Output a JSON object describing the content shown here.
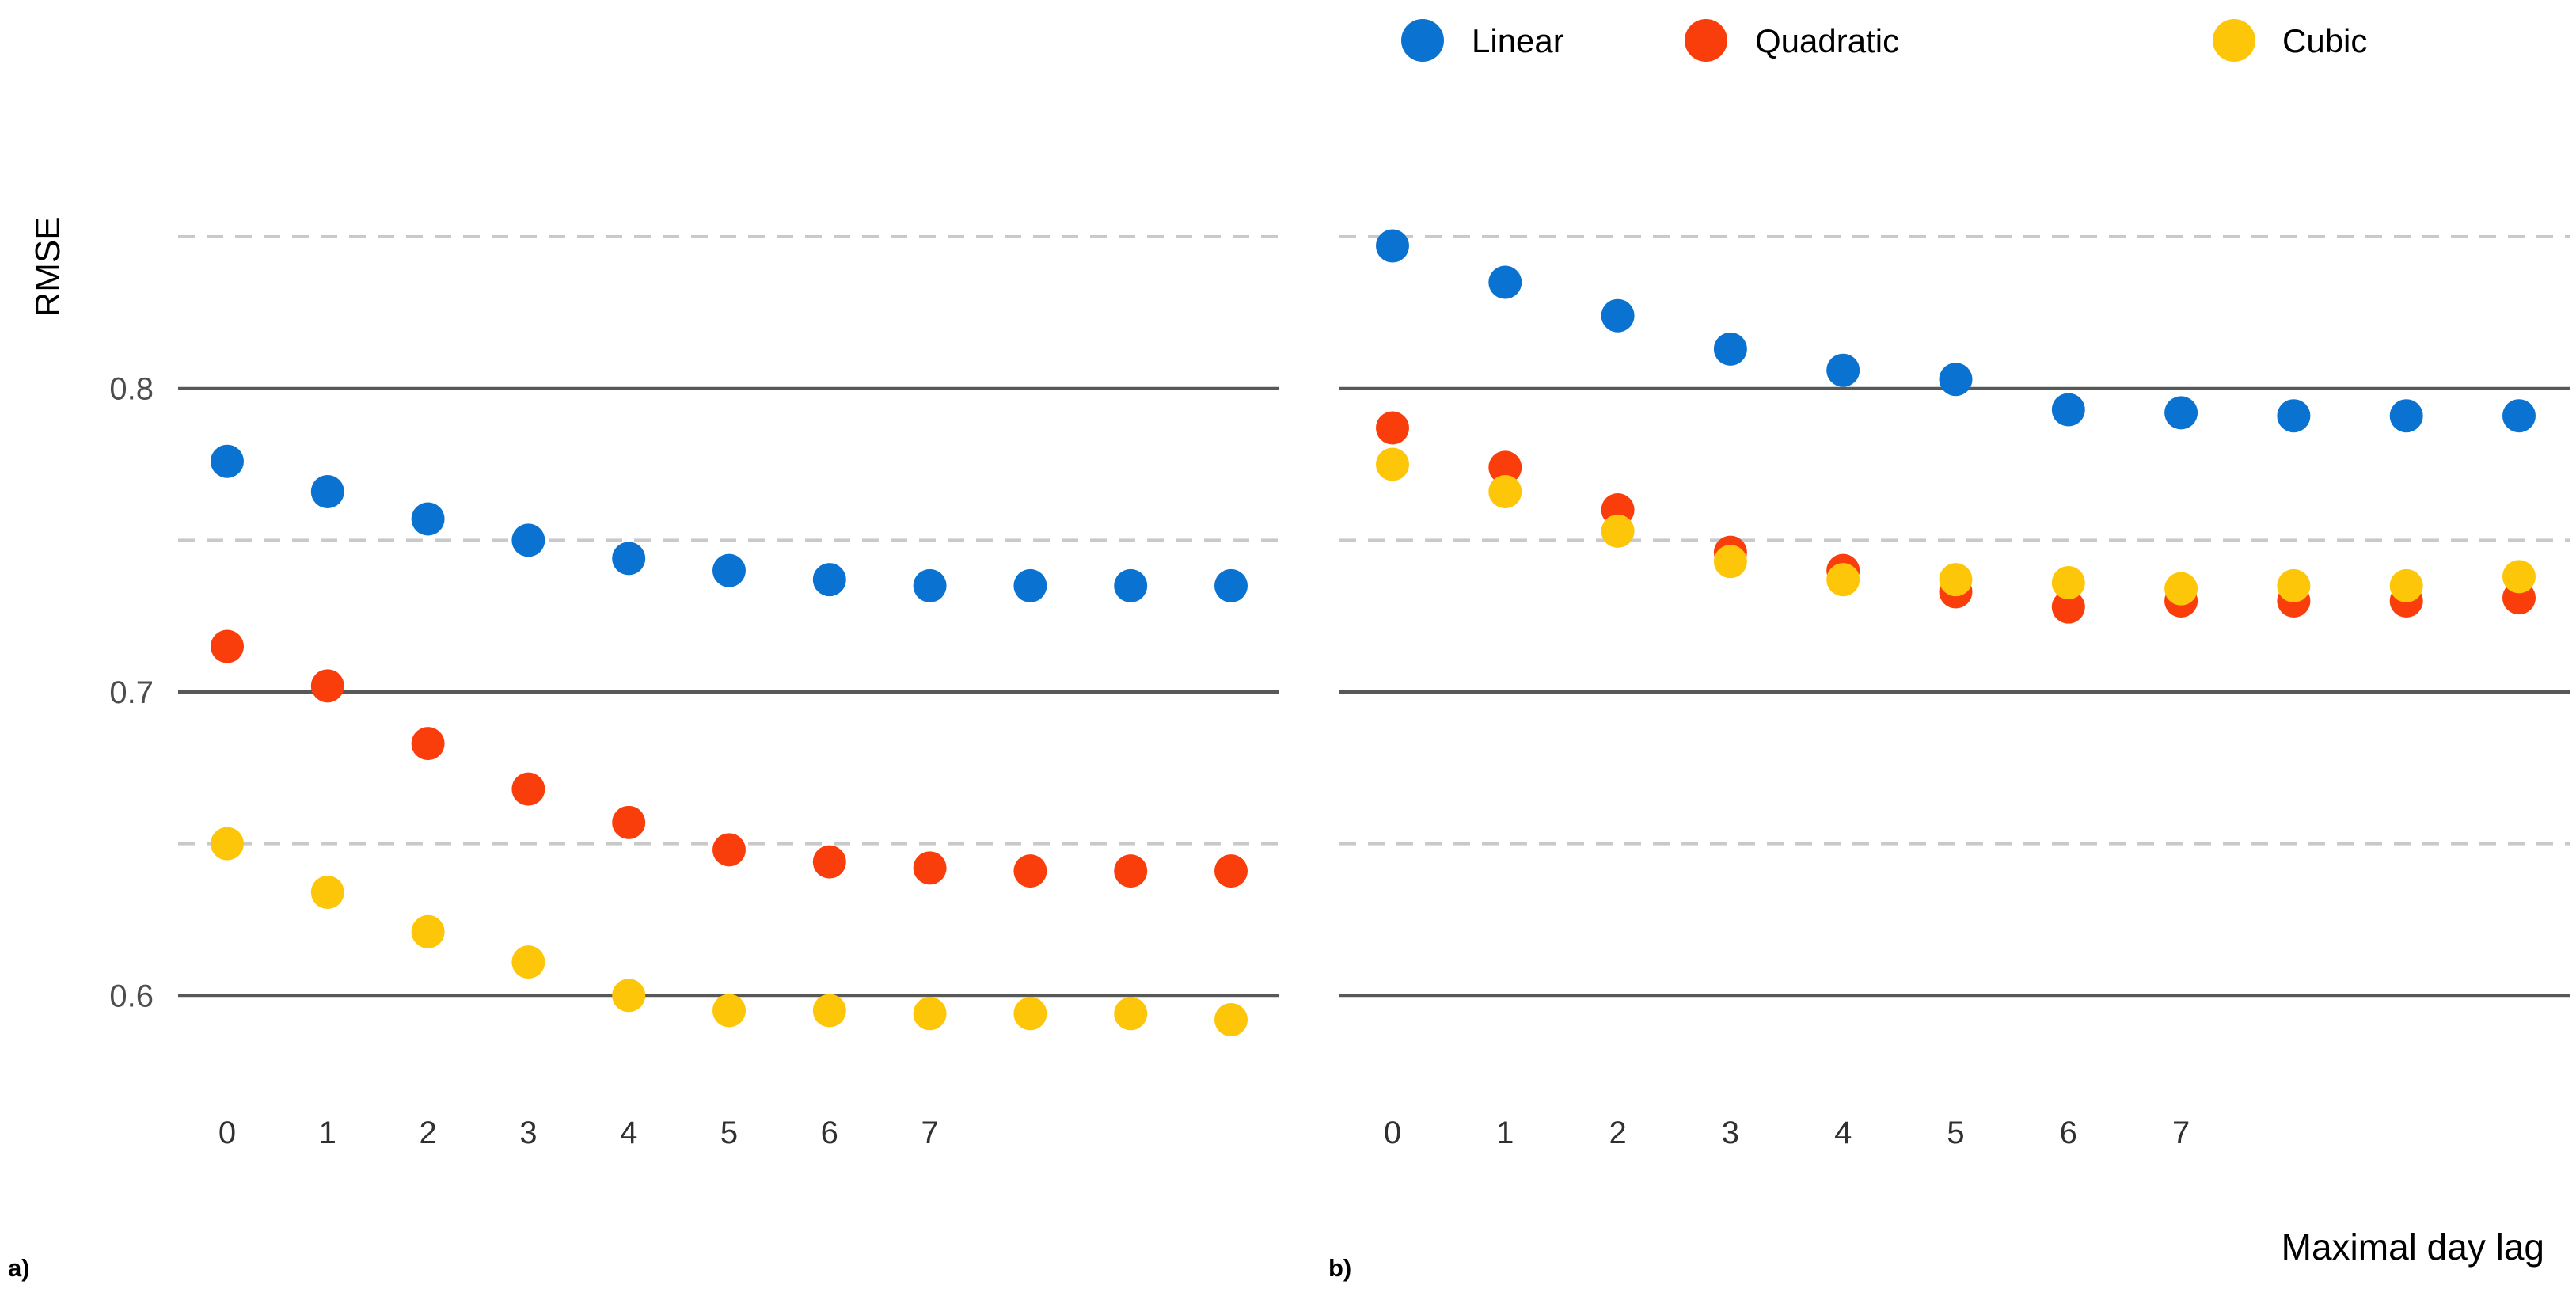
{
  "figure": {
    "y_axis_title": "RMSE",
    "x_axis_title": "Maximal day lag",
    "panel_a_label": "a)",
    "panel_b_label": "b)",
    "background_color": "#ffffff",
    "gridline_solid_color": "#585858",
    "gridline_dashed_color": "#c9c9c9",
    "y_tick_color": "#4d4d4d",
    "x_tick_color": "#303030"
  },
  "legend": {
    "items": [
      {
        "label": "Linear",
        "color": "#0a73d1"
      },
      {
        "label": "Quadratic",
        "color": "#f93d0b"
      },
      {
        "label": "Cubic",
        "color": "#fdc608"
      }
    ]
  },
  "chart_data": [
    {
      "type": "scatter",
      "panel_label": "a)",
      "xlabel": "Maximal day lag",
      "ylabel": "RMSE",
      "x": [
        0,
        1,
        2,
        3,
        4,
        5,
        6,
        7,
        8,
        9,
        10
      ],
      "x_tick_labels": [
        "0",
        "1",
        "2",
        "3",
        "4",
        "5",
        "6",
        "7"
      ],
      "ylim": [
        0.575,
        0.87
      ],
      "gridlines": {
        "solid": [
          0.8,
          0.7,
          0.6
        ],
        "dashed": [
          0.85,
          0.75,
          0.65
        ]
      },
      "y_tick_labels": [
        {
          "label": "0.8",
          "value": 0.8
        },
        {
          "label": "0.7",
          "value": 0.7
        },
        {
          "label": "0.6",
          "value": 0.6
        }
      ],
      "series": [
        {
          "name": "Linear",
          "color": "#0a73d1",
          "values": [
            0.776,
            0.766,
            0.757,
            0.75,
            0.744,
            0.74,
            0.737,
            0.735,
            0.735,
            0.735,
            0.735
          ]
        },
        {
          "name": "Quadratic",
          "color": "#f93d0b",
          "values": [
            0.715,
            0.702,
            0.683,
            0.668,
            0.657,
            0.648,
            0.644,
            0.642,
            0.641,
            0.641,
            0.641
          ]
        },
        {
          "name": "Cubic",
          "color": "#fdc608",
          "values": [
            0.65,
            0.634,
            0.621,
            0.611,
            0.6,
            0.595,
            0.595,
            0.594,
            0.594,
            0.594,
            0.592
          ]
        }
      ]
    },
    {
      "type": "scatter",
      "panel_label": "b)",
      "xlabel": "Maximal day lag",
      "ylabel": "RMSE",
      "x": [
        0,
        1,
        2,
        3,
        4,
        5,
        6,
        7,
        8,
        9,
        10
      ],
      "x_tick_labels": [
        "0",
        "1",
        "2",
        "3",
        "4",
        "5",
        "6",
        "7"
      ],
      "ylim": [
        0.575,
        0.87
      ],
      "gridlines": {
        "solid": [
          0.8,
          0.7,
          0.6
        ],
        "dashed": [
          0.85,
          0.75,
          0.65
        ]
      },
      "y_tick_labels": [],
      "series": [
        {
          "name": "Linear",
          "color": "#0a73d1",
          "values": [
            0.847,
            0.835,
            0.824,
            0.813,
            0.806,
            0.803,
            0.793,
            0.792,
            0.791,
            0.791,
            0.791
          ]
        },
        {
          "name": "Quadratic",
          "color": "#f93d0b",
          "values": [
            0.787,
            0.774,
            0.76,
            0.746,
            0.74,
            0.733,
            0.728,
            0.73,
            0.73,
            0.73,
            0.731
          ]
        },
        {
          "name": "Cubic",
          "color": "#fdc608",
          "values": [
            0.775,
            0.766,
            0.753,
            0.743,
            0.737,
            0.737,
            0.736,
            0.734,
            0.735,
            0.735,
            0.738
          ]
        }
      ]
    }
  ]
}
